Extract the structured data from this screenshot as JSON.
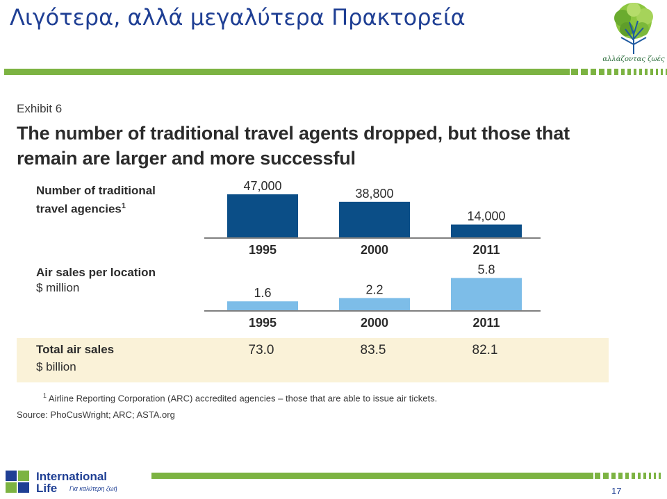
{
  "slide": {
    "title": "Λιγότερα, αλλά μεγαλύτερα Πρακτορεία",
    "page_number": "17"
  },
  "logo": {
    "tagline": "αλλάζοντας ζωές"
  },
  "footer": {
    "brand_line1": "International",
    "brand_line2": "Life",
    "brand_tagline": "Για καλύτερη ζωή"
  },
  "exhibit": {
    "label": "Exhibit 6",
    "headline": "The number of traditional travel agents dropped, but those that remain are larger and more successful",
    "footnote_mark": "1",
    "footnote": "Airline Reporting Corporation (ARC) accredited agencies – those that are able to issue air tickets.",
    "source": "Source: PhoCusWright; ARC; ASTA.org"
  },
  "colors": {
    "dark_bar": "#0b4e87",
    "light_bar": "#7dbde8",
    "accent_green": "#7cb342",
    "title_blue": "#1f3f94",
    "total_band": "#faf2d8"
  },
  "chart_data": [
    {
      "type": "bar",
      "title": "Number of traditional travel agencies",
      "title_superscript": "1",
      "categories": [
        "1995",
        "2000",
        "2011"
      ],
      "values": [
        47000,
        38800,
        14000
      ],
      "value_labels": [
        "47,000",
        "38,800",
        "14,000"
      ],
      "ylim": [
        0,
        47000
      ],
      "color": "#0b4e87"
    },
    {
      "type": "bar",
      "title": "Air sales per location",
      "unit": "$ million",
      "categories": [
        "1995",
        "2000",
        "2011"
      ],
      "values": [
        1.6,
        2.2,
        5.8
      ],
      "value_labels": [
        "1.6",
        "2.2",
        "5.8"
      ],
      "ylim": [
        0,
        6.5
      ],
      "color": "#7dbde8"
    },
    {
      "type": "table",
      "title": "Total air sales",
      "unit": "$ billion",
      "categories": [
        "1995",
        "2000",
        "2011"
      ],
      "values": [
        73.0,
        83.5,
        82.1
      ],
      "value_labels": [
        "73.0",
        "83.5",
        "82.1"
      ]
    }
  ]
}
